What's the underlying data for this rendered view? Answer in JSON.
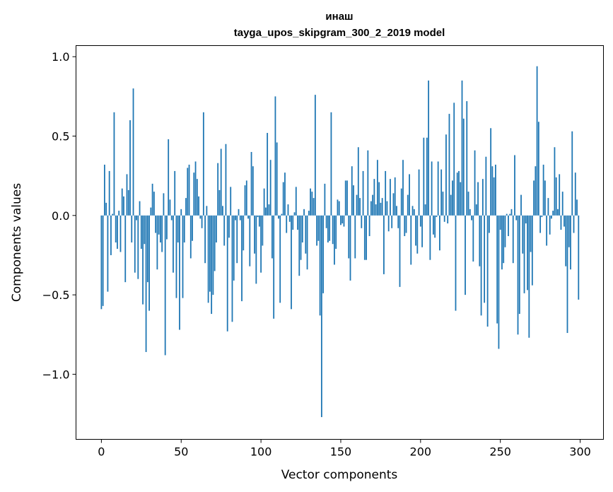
{
  "chart_data": {
    "type": "bar",
    "title": "инаш",
    "subtitle": "tayga_upos_skipgram_300_2_2019 model",
    "xlabel": "Vector components",
    "ylabel": "Components values",
    "xlim": [
      -15.9,
      314.6
    ],
    "ylim": [
      -1.41,
      1.07
    ],
    "xticks": [
      0,
      50,
      100,
      150,
      200,
      250,
      300
    ],
    "xtick_labels": [
      "0",
      "50",
      "100",
      "150",
      "200",
      "250",
      "300"
    ],
    "yticks": [
      -1.0,
      -0.5,
      0.0,
      0.5,
      1.0
    ],
    "ytick_labels": [
      "−1.0",
      "−0.5",
      "0.0",
      "0.5",
      "1.0"
    ],
    "grid": false,
    "bar_color": "#1f77b4",
    "values": [
      -0.59,
      -0.57,
      0.32,
      0.08,
      -0.48,
      0.28,
      -0.25,
      0.01,
      0.65,
      -0.17,
      -0.21,
      0.03,
      -0.23,
      0.17,
      0.12,
      -0.42,
      0.26,
      0.16,
      0.6,
      -0.17,
      0.8,
      -0.36,
      -0.03,
      -0.4,
      0.09,
      -0.21,
      -0.56,
      -0.18,
      -0.86,
      -0.42,
      -0.6,
      0.05,
      0.2,
      0.15,
      -0.11,
      -0.34,
      -0.12,
      -0.17,
      -0.23,
      0.14,
      -0.88,
      -0.15,
      0.48,
      0.1,
      -0.03,
      -0.36,
      0.28,
      -0.52,
      -0.17,
      -0.72,
      0.04,
      -0.52,
      -0.17,
      0.11,
      0.3,
      0.32,
      -0.27,
      -0.16,
      0.27,
      0.34,
      0.23,
      0.12,
      -0.02,
      -0.08,
      0.65,
      -0.3,
      0.06,
      -0.55,
      -0.48,
      -0.62,
      -0.5,
      -0.35,
      -0.17,
      0.33,
      0.16,
      0.42,
      0.06,
      -0.19,
      0.45,
      -0.73,
      -0.14,
      0.18,
      -0.67,
      -0.41,
      -0.03,
      -0.3,
      0.04,
      -0.03,
      -0.54,
      -0.22,
      0.19,
      0.22,
      -0.02,
      -0.32,
      0.4,
      0.31,
      -0.24,
      -0.43,
      -0.01,
      -0.07,
      -0.36,
      -0.19,
      0.17,
      0.05,
      0.52,
      0.07,
      0.35,
      -0.27,
      -0.65,
      0.75,
      0.46,
      -0.02,
      -0.55,
      0.01,
      0.21,
      0.27,
      -0.11,
      0.07,
      -0.04,
      -0.59,
      -0.09,
      0.02,
      0.18,
      -0.09,
      -0.38,
      -0.28,
      -0.17,
      0.04,
      -0.24,
      -0.34,
      0.03,
      0.17,
      0.15,
      0.11,
      0.76,
      -0.19,
      -0.16,
      -0.63,
      -1.27,
      -0.49,
      0.2,
      -0.08,
      -0.17,
      -0.16,
      0.65,
      -0.18,
      -0.31,
      -0.21,
      0.1,
      0.09,
      -0.06,
      -0.05,
      -0.07,
      0.22,
      0.22,
      -0.27,
      -0.41,
      0.31,
      0.19,
      -0.27,
      0.13,
      0.43,
      0.11,
      -0.08,
      0.28,
      -0.28,
      -0.28,
      0.41,
      -0.13,
      0.09,
      0.13,
      0.23,
      0.07,
      0.35,
      0.21,
      0.08,
      0.11,
      -0.37,
      0.28,
      0.09,
      -0.1,
      0.23,
      -0.08,
      0.14,
      0.24,
      0.06,
      -0.08,
      -0.45,
      0.17,
      0.35,
      -0.13,
      -0.11,
      0.13,
      0.26,
      -0.31,
      0.06,
      0.04,
      -0.19,
      -0.24,
      0.29,
      -0.07,
      -0.2,
      0.49,
      0.07,
      0.49,
      0.85,
      -0.28,
      0.34,
      -0.12,
      -0.14,
      -0.01,
      0.34,
      -0.22,
      0.29,
      0.15,
      -0.04,
      0.51,
      -0.05,
      0.64,
      0.13,
      0.22,
      0.71,
      -0.6,
      0.27,
      0.28,
      0.21,
      0.85,
      0.61,
      -0.5,
      0.72,
      0.15,
      0.04,
      -0.03,
      -0.29,
      0.41,
      0.07,
      0.21,
      -0.32,
      -0.63,
      0.23,
      -0.55,
      0.37,
      -0.7,
      -0.11,
      0.55,
      0.31,
      0.24,
      0.32,
      -0.68,
      -0.84,
      -0.09,
      -0.34,
      -0.3,
      -0.2,
      0.01,
      -0.13,
      0.01,
      0.04,
      -0.3,
      0.38,
      -0.03,
      -0.75,
      -0.62,
      0.13,
      -0.24,
      -0.49,
      -0.05,
      -0.47,
      -0.77,
      -0.23,
      -0.44,
      0.22,
      0.31,
      0.94,
      0.59,
      -0.11,
      -0.01,
      0.32,
      0.22,
      -0.19,
      0.11,
      -0.12,
      -0.02,
      0.03,
      0.43,
      0.24,
      0.04,
      0.26,
      -0.09,
      0.15,
      -0.07,
      -0.32,
      -0.74,
      -0.2,
      -0.34,
      0.53,
      -0.11,
      0.27,
      0.1,
      -0.53
    ]
  }
}
